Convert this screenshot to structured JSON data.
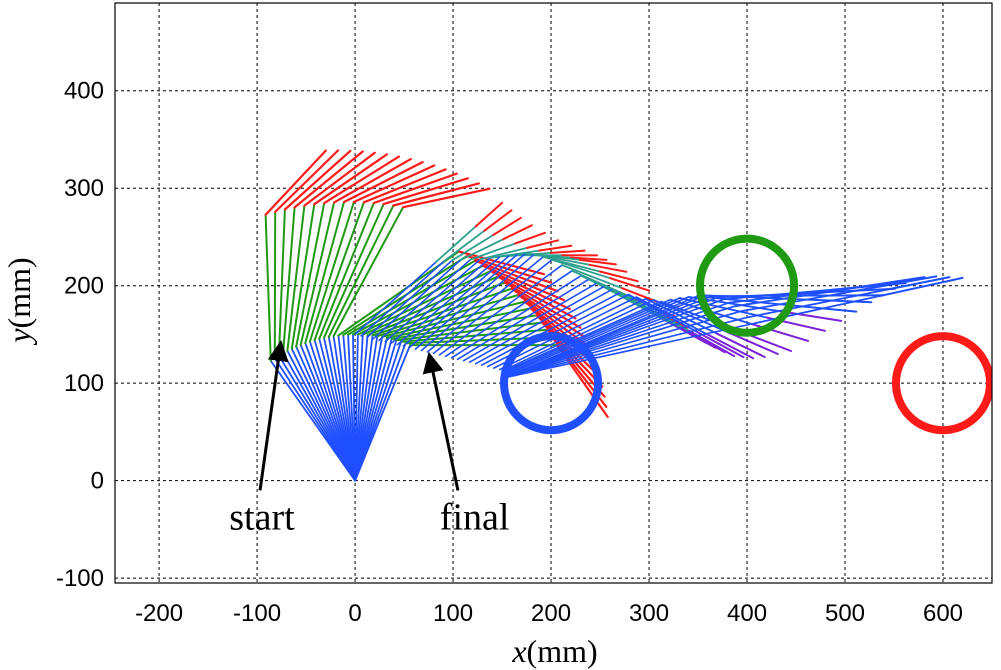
{
  "chart_data": {
    "type": "line",
    "title": "",
    "xlabel_var": "x",
    "xlabel_unit": "(mm)",
    "ylabel_var": "y",
    "ylabel_unit": "(mm)",
    "xlim": [
      -245,
      650
    ],
    "ylim": [
      -105,
      490
    ],
    "grid": true,
    "x_ticks": [
      -200,
      -100,
      0,
      100,
      200,
      300,
      400,
      500,
      600
    ],
    "y_ticks": [
      -100,
      0,
      100,
      200,
      300,
      400
    ],
    "annotations": [
      {
        "text": "start",
        "label_at": [
          -95,
          -50
        ],
        "arrow_from": [
          -97,
          -10
        ],
        "arrow_to": [
          -76,
          140
        ]
      },
      {
        "text": "final",
        "label_at": [
          122,
          -50
        ],
        "arrow_from": [
          105,
          -10
        ],
        "arrow_to": [
          76,
          128
        ]
      }
    ],
    "colors": {
      "blue": "#1f4fff",
      "green": "#1f9a12",
      "red": "#ff1a1a",
      "teal": "#2b9e8e",
      "purple": "#7a22d9"
    },
    "targets": [
      {
        "color": "#1f4fff",
        "center": [
          200,
          100
        ],
        "radius": 48
      },
      {
        "color": "#1f9a12",
        "center": [
          400,
          200
        ],
        "radius": 48
      },
      {
        "color": "#ff1a1a",
        "center": [
          600,
          100
        ],
        "radius": 48
      }
    ],
    "link_lengths_mm": [
      150,
      150,
      90
    ],
    "frame_count": 30,
    "start_joint_angles_deg": [
      125,
      55,
      45
    ],
    "final_joint_angles_deg": [
      68,
      68,
      55
    ],
    "final_tip_path": [
      [
        150,
        285
      ],
      [
        175,
        265
      ],
      [
        210,
        245
      ],
      [
        245,
        232
      ],
      [
        270,
        220
      ],
      [
        300,
        195
      ],
      [
        335,
        160
      ],
      [
        360,
        140
      ],
      [
        385,
        128
      ],
      [
        410,
        125
      ],
      [
        445,
        133
      ],
      [
        490,
        160
      ],
      [
        530,
        185
      ],
      [
        560,
        202
      ],
      [
        585,
        210
      ],
      [
        620,
        208
      ]
    ]
  }
}
